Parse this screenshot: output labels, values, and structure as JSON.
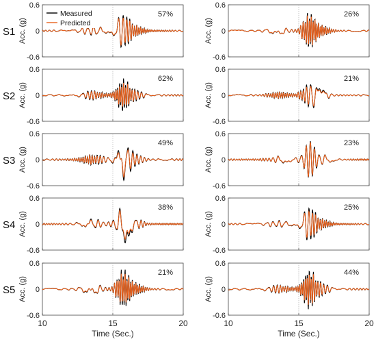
{
  "colors": {
    "measured": "#000000",
    "predicted": "#e8601c",
    "marker": "#b0b0b0"
  },
  "legend": {
    "measured": "Measured",
    "predicted": "Predicted"
  },
  "common": {
    "ylabel": "Acc. (g)",
    "xlabel": "Time (Sec.)",
    "yticks": [
      "0.6",
      "0",
      "-0.6"
    ],
    "xticks": [
      "10",
      "15",
      "20"
    ],
    "xlim": [
      10,
      20
    ],
    "ylim": [
      -0.6,
      0.6
    ]
  },
  "chart_data": [
    {
      "type": "line",
      "row_label": "S1",
      "annotation": "57%",
      "peak_measured": 0.46,
      "peak_predicted": 0.44,
      "series": [
        {
          "name": "Measured"
        },
        {
          "name": "Predicted"
        }
      ]
    },
    {
      "type": "line",
      "row_label": "",
      "annotation": "26%",
      "peak_measured": 0.46,
      "peak_predicted": 0.46,
      "series": [
        {
          "name": "Measured"
        },
        {
          "name": "Predicted"
        }
      ]
    },
    {
      "type": "line",
      "row_label": "S2",
      "annotation": "62%",
      "peak_measured": 0.42,
      "peak_predicted": 0.36,
      "series": [
        {
          "name": "Measured"
        },
        {
          "name": "Predicted"
        }
      ]
    },
    {
      "type": "line",
      "row_label": "",
      "annotation": "21%",
      "peak_measured": 0.42,
      "peak_predicted": 0.38,
      "series": [
        {
          "name": "Measured"
        },
        {
          "name": "Predicted"
        }
      ]
    },
    {
      "type": "line",
      "row_label": "S3",
      "annotation": "49%",
      "peak_measured": 0.5,
      "peak_predicted": 0.44,
      "series": [
        {
          "name": "Measured"
        },
        {
          "name": "Predicted"
        }
      ]
    },
    {
      "type": "line",
      "row_label": "",
      "annotation": "23%",
      "peak_measured": 0.44,
      "peak_predicted": 0.44,
      "series": [
        {
          "name": "Measured"
        },
        {
          "name": "Predicted"
        }
      ]
    },
    {
      "type": "line",
      "row_label": "S4",
      "annotation": "38%",
      "peak_measured": 0.46,
      "peak_predicted": 0.42,
      "series": [
        {
          "name": "Measured"
        },
        {
          "name": "Predicted"
        }
      ]
    },
    {
      "type": "line",
      "row_label": "",
      "annotation": "25%",
      "peak_measured": 0.44,
      "peak_predicted": 0.4,
      "series": [
        {
          "name": "Measured"
        },
        {
          "name": "Predicted"
        }
      ]
    },
    {
      "type": "line",
      "row_label": "S5",
      "annotation": "21%",
      "peak_measured": 0.5,
      "peak_predicted": 0.46,
      "series": [
        {
          "name": "Measured"
        },
        {
          "name": "Predicted"
        }
      ]
    },
    {
      "type": "line",
      "row_label": "",
      "annotation": "44%",
      "peak_measured": 0.5,
      "peak_predicted": 0.46,
      "series": [
        {
          "name": "Measured"
        },
        {
          "name": "Predicted"
        }
      ]
    }
  ]
}
